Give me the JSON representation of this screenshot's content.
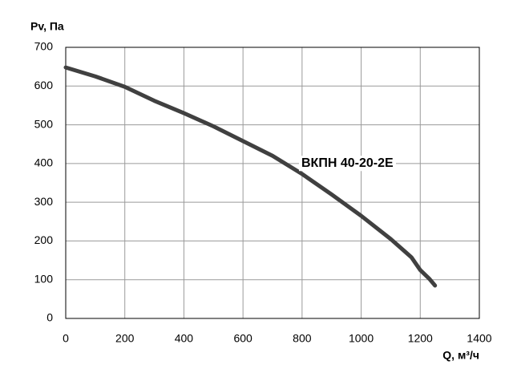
{
  "chart_data": {
    "type": "line",
    "y_label": "Pv, Па",
    "x_label": "Q, м³/ч",
    "annotation": "ВКПН 40-20-2Е",
    "x": [
      0,
      100,
      200,
      300,
      400,
      500,
      600,
      700,
      800,
      900,
      1000,
      1100,
      1170,
      1200,
      1230,
      1250
    ],
    "values": [
      648,
      625,
      598,
      562,
      530,
      496,
      458,
      420,
      373,
      320,
      265,
      205,
      158,
      125,
      103,
      85
    ],
    "color": "#404040",
    "xlim": [
      0,
      1400
    ],
    "xticks": [
      0,
      200,
      400,
      600,
      800,
      1000,
      1200,
      1400
    ],
    "ylim": [
      0,
      700
    ],
    "yticks": [
      0,
      100,
      200,
      300,
      400,
      500,
      600,
      700
    ],
    "grid": true
  }
}
